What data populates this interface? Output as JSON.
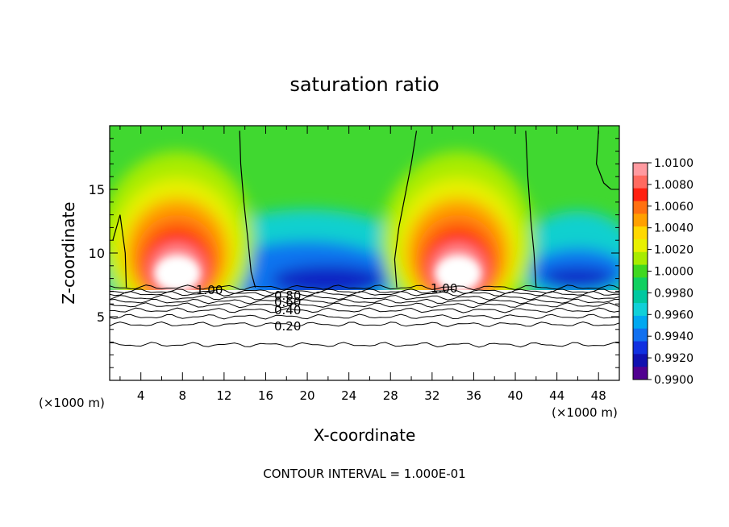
{
  "chart_data": {
    "type": "heatmap",
    "title": "saturation ratio",
    "xlabel": "X-coordinate",
    "ylabel": "Z-coordinate",
    "x_unit_left": "(×1000 m)",
    "x_unit_right": "(×1000 m)",
    "footer": "CONTOUR INTERVAL = 1.000E-01",
    "xlim": [
      1,
      50
    ],
    "ylim": [
      0,
      20
    ],
    "x_ticks": [
      4,
      8,
      12,
      16,
      20,
      24,
      28,
      32,
      36,
      40,
      44,
      48
    ],
    "y_ticks": [
      5,
      10,
      15
    ],
    "colorbar": {
      "labels": [
        "1.0100",
        "1.0080",
        "1.0060",
        "1.0040",
        "1.0020",
        "1.0000",
        "0.9980",
        "0.9960",
        "0.9940",
        "0.9920",
        "0.9900"
      ],
      "colors": [
        "#ff9aa0",
        "#ff6a60",
        "#ff2010",
        "#ff7010",
        "#ffa000",
        "#ffd800",
        "#e8f000",
        "#a8ec00",
        "#40d820",
        "#10d060",
        "#00c8a0",
        "#10d0d8",
        "#00a8f0",
        "#1070f0",
        "#1030e0",
        "#1010b0",
        "#500090"
      ]
    },
    "contour_labels": [
      "1.00",
      "1.00",
      "0.80",
      "0.60",
      "0.40",
      "0.20"
    ],
    "contour_levels": [
      1.0,
      0.8,
      0.6,
      0.4,
      0.2
    ],
    "warm_plumes_x": [
      7.5,
      34.5
    ],
    "dry_downdrafts_x": [
      20,
      46
    ]
  }
}
